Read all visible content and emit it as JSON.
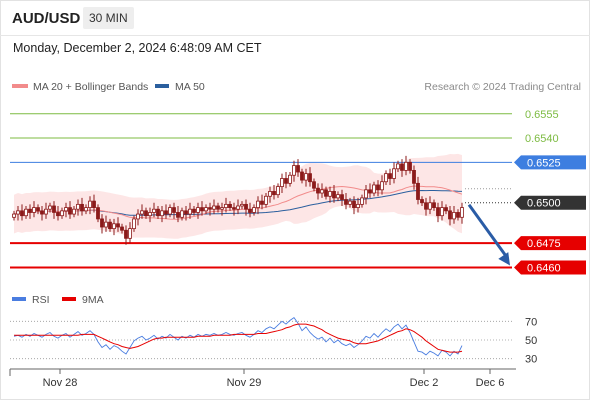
{
  "header": {
    "pair": "AUD/USD",
    "timeframe": "30 MIN",
    "datetime": "Monday, December 2, 2024 6:48:09 AM CET",
    "copyright": "Research © 2024 Trading Central"
  },
  "colors": {
    "ma20": "#f28b8b",
    "ma50": "#2b5f9e",
    "band_fill": "#fde3e3",
    "candle": "#8b1a1a",
    "resistance": "#7dbb42",
    "pivot": "#3d7ee0",
    "support": "#e60000",
    "rsi": "#4a7de0",
    "rsi_ma": "#e60000",
    "current_price": "#333333",
    "forecast_arrow": "#2a5ca6"
  },
  "chart_data": [
    {
      "type": "candlestick",
      "legend": [
        {
          "name": "MA 20 + Bollinger Bands",
          "color": "#f28b8b"
        },
        {
          "name": "MA 50",
          "color": "#2b5f9e"
        }
      ],
      "x_ticks": [
        "Nov 28",
        "Nov 29",
        "Dec 2",
        "Dec 6"
      ],
      "ylim": [
        0.6451,
        0.6566
      ],
      "levels": [
        {
          "label": "0.6555",
          "value": 0.6555,
          "kind": "resistance"
        },
        {
          "label": "0.6540",
          "value": 0.654,
          "kind": "resistance"
        },
        {
          "label": "0.6525",
          "value": 0.6525,
          "kind": "pivot"
        },
        {
          "label": "0.6475",
          "value": 0.6475,
          "kind": "support"
        },
        {
          "label": "0.6460",
          "value": 0.646,
          "kind": "support"
        }
      ],
      "current_price": {
        "label": "0.6500",
        "value": 0.65
      },
      "forecast": {
        "from": 0.65,
        "to": 0.646
      },
      "close": [
        0.6493,
        0.6495,
        0.6492,
        0.6496,
        0.6494,
        0.6497,
        0.6495,
        0.6493,
        0.6496,
        0.6498,
        0.6494,
        0.6492,
        0.6495,
        0.6497,
        0.6493,
        0.6496,
        0.6499,
        0.6495,
        0.6497,
        0.6501,
        0.6497,
        0.649,
        0.6485,
        0.6488,
        0.6484,
        0.6487,
        0.6485,
        0.6483,
        0.6478,
        0.6484,
        0.649,
        0.6493,
        0.6495,
        0.6492,
        0.6494,
        0.6496,
        0.6492,
        0.6495,
        0.6493,
        0.6497,
        0.6494,
        0.6491,
        0.6495,
        0.6493,
        0.6496,
        0.6494,
        0.6497,
        0.6495,
        0.6497,
        0.6496,
        0.6498,
        0.6496,
        0.6497,
        0.6499,
        0.6497,
        0.6496,
        0.6498,
        0.6499,
        0.6496,
        0.6494,
        0.6497,
        0.6501,
        0.6499,
        0.6504,
        0.6507,
        0.6505,
        0.651,
        0.6515,
        0.6512,
        0.6517,
        0.6523,
        0.6519,
        0.6514,
        0.6518,
        0.6513,
        0.6509,
        0.6506,
        0.6508,
        0.6504,
        0.6507,
        0.6503,
        0.6505,
        0.6502,
        0.6499,
        0.6501,
        0.6497,
        0.6499,
        0.6503,
        0.6508,
        0.6506,
        0.6511,
        0.6508,
        0.6513,
        0.6518,
        0.6515,
        0.6521,
        0.6524,
        0.652,
        0.6525,
        0.652,
        0.6512,
        0.6502,
        0.65,
        0.6496,
        0.65,
        0.6497,
        0.6492,
        0.6497,
        0.6495,
        0.649,
        0.6494,
        0.6491,
        0.6497
      ]
    },
    {
      "type": "line",
      "legend": [
        {
          "name": "RSI",
          "color": "#4a7de0"
        },
        {
          "name": "9MA",
          "color": "#e60000"
        }
      ],
      "y_ticks": [
        "70",
        "50",
        "30"
      ],
      "ylim": [
        20,
        80
      ],
      "series": [
        {
          "name": "RSI",
          "values": [
            54,
            55,
            53,
            56,
            54,
            57,
            55,
            53,
            56,
            58,
            54,
            52,
            55,
            57,
            53,
            56,
            59,
            55,
            57,
            60,
            56,
            48,
            42,
            45,
            40,
            44,
            42,
            38,
            35,
            42,
            49,
            52,
            54,
            50,
            52,
            55,
            51,
            54,
            52,
            56,
            53,
            50,
            54,
            52,
            55,
            53,
            56,
            54,
            56,
            55,
            57,
            55,
            56,
            58,
            56,
            55,
            57,
            58,
            55,
            53,
            56,
            60,
            58,
            62,
            64,
            62,
            66,
            70,
            67,
            71,
            74,
            68,
            60,
            64,
            58,
            54,
            51,
            53,
            48,
            52,
            47,
            50,
            46,
            44,
            46,
            42,
            45,
            49,
            54,
            52,
            57,
            53,
            58,
            62,
            59,
            64,
            67,
            62,
            66,
            58,
            48,
            38,
            37,
            34,
            38,
            36,
            33,
            39,
            37,
            33,
            38,
            35,
            44
          ]
        },
        {
          "name": "9MA",
          "values": [
            55,
            55,
            55,
            55,
            55,
            55,
            55,
            55,
            55,
            55,
            55,
            55,
            55,
            55,
            55,
            55,
            55,
            56,
            56,
            56,
            56,
            54,
            52,
            50,
            48,
            46,
            45,
            43,
            42,
            41,
            42,
            43,
            45,
            47,
            49,
            51,
            52,
            52,
            53,
            53,
            53,
            53,
            53,
            53,
            53,
            53,
            54,
            54,
            54,
            54,
            55,
            55,
            55,
            55,
            55,
            56,
            56,
            56,
            56,
            56,
            56,
            57,
            57,
            57,
            58,
            59,
            60,
            61,
            63,
            64,
            66,
            67,
            67,
            67,
            66,
            65,
            63,
            61,
            58,
            56,
            54,
            52,
            51,
            50,
            49,
            47,
            46,
            46,
            46,
            47,
            48,
            49,
            51,
            53,
            55,
            57,
            59,
            60,
            62,
            61,
            59,
            56,
            53,
            49,
            46,
            43,
            40,
            39,
            38,
            37,
            37,
            37,
            38
          ]
        }
      ]
    }
  ]
}
